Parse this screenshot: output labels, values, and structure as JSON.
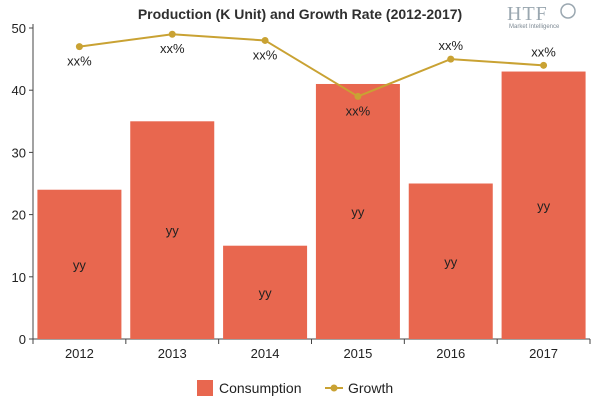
{
  "logo": {
    "main": "HTF",
    "sub": "Market Intelligence"
  },
  "chart_data": {
    "type": "bar",
    "title": "Production (K Unit) and Growth Rate (2012-2017)",
    "categories": [
      "2012",
      "2013",
      "2014",
      "2015",
      "2016",
      "2017"
    ],
    "ylim": [
      0,
      50
    ],
    "yticks": [
      0,
      10,
      20,
      30,
      40,
      50
    ],
    "grid": false,
    "legend_position": "bottom-center",
    "series": [
      {
        "name": "Consumption",
        "type": "bar",
        "color": "#e8674f",
        "values": [
          24,
          35,
          15,
          41,
          25,
          43
        ],
        "labels": [
          "yy",
          "yy",
          "yy",
          "yy",
          "yy",
          "yy"
        ]
      },
      {
        "name": "Growth",
        "type": "line",
        "color": "#c9a233",
        "values": [
          47,
          49,
          48,
          39,
          45,
          44
        ],
        "labels": [
          "xx%",
          "xx%",
          "xx%",
          "xx%",
          "xx%",
          "xx%"
        ]
      }
    ]
  }
}
